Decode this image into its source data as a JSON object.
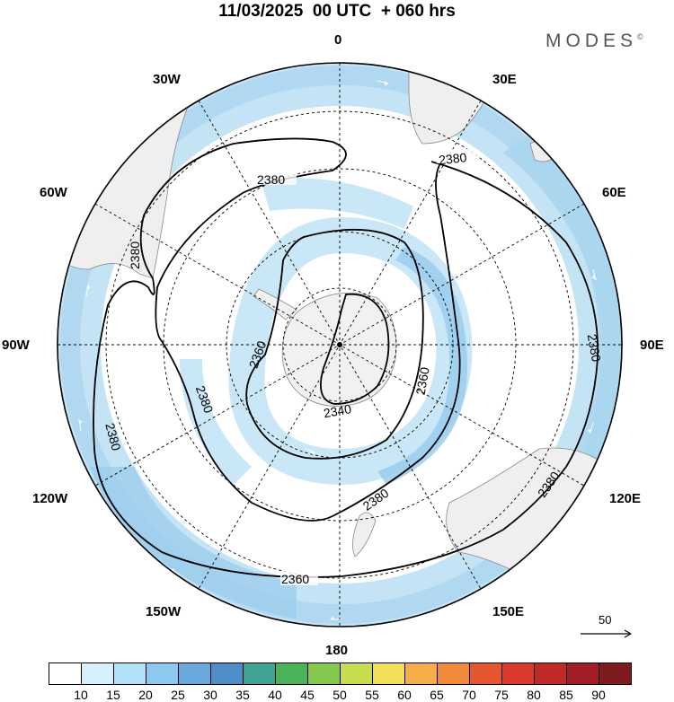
{
  "title": "11/03/2025  00 UTC  + 060 hrs",
  "brand": "MODES",
  "brand_mark": "©",
  "longitude_labels": {
    "top": "0",
    "top_left": "30W",
    "top_right": "30E",
    "upper_left": "60W",
    "upper_right": "60E",
    "left": "90W",
    "right": "90E",
    "lower_left": "120W",
    "lower_right": "120E",
    "bottom_left": "150W",
    "bottom_right": "150E",
    "bottom": "180"
  },
  "contour_labels": [
    "2380",
    "2380",
    "2380",
    "2380",
    "2380",
    "2380",
    "2380",
    "2380",
    "2360",
    "2360",
    "2360",
    "2340"
  ],
  "reference_vector": "50",
  "colorbar": {
    "labels": [
      "10",
      "15",
      "20",
      "25",
      "30",
      "35",
      "40",
      "45",
      "50",
      "55",
      "60",
      "65",
      "70",
      "75",
      "80",
      "85",
      "90"
    ],
    "colors": [
      "#ffffff",
      "#d6f0fc",
      "#b3e1f7",
      "#8cc8ef",
      "#6aa9dd",
      "#4d8ec8",
      "#3fa394",
      "#4bb357",
      "#86c84d",
      "#c7dc4f",
      "#f5df5a",
      "#f4ad48",
      "#ee8a39",
      "#e4562f",
      "#d93a2c",
      "#c22a2a",
      "#a31d26",
      "#7f1a1f"
    ]
  },
  "colors": {
    "land": "#f1f1f1",
    "wind_light": "#d3ecf8",
    "wind_medium": "#b4dbf1",
    "wind_strong": "#92c8ea",
    "contour": "#000000"
  }
}
